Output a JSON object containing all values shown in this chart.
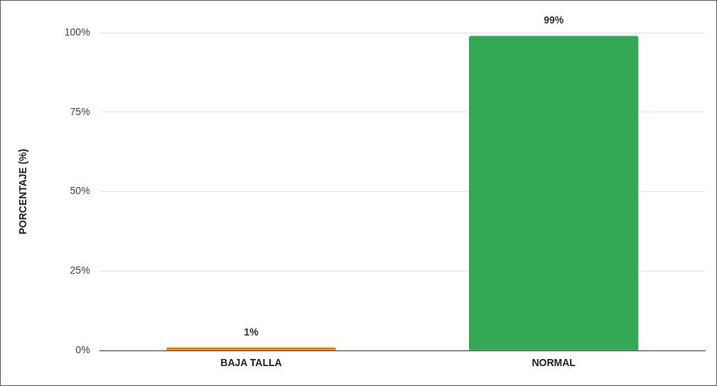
{
  "chart_data": {
    "type": "bar",
    "ylabel": "PORCENTAJE (%)",
    "categories": [
      "BAJA TALLA",
      "NORMAL"
    ],
    "values": [
      1,
      99
    ],
    "colors": [
      "#f57c00",
      "#34a853"
    ],
    "value_labels": [
      "1%",
      "99%"
    ],
    "ylim": [
      0,
      100
    ],
    "yticks": [
      {
        "value": 0,
        "label": "0%"
      },
      {
        "value": 25,
        "label": "25%"
      },
      {
        "value": 50,
        "label": "50%"
      },
      {
        "value": 75,
        "label": "75%"
      },
      {
        "value": 100,
        "label": "100%"
      }
    ],
    "grid": "y",
    "legend": false
  }
}
